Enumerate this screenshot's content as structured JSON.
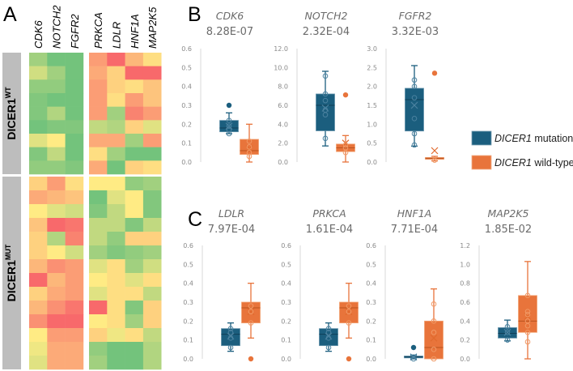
{
  "colors": {
    "mutation": "#1B5E7E",
    "wildtype": "#E8743B",
    "low": "#63BE7B",
    "mid": "#FFEB84",
    "high": "#F8696B",
    "group_bar": "#BDBDBD"
  },
  "panels": {
    "a": "A",
    "b": "B",
    "c": "C"
  },
  "legend": [
    {
      "italic": "DICER1",
      "text": " mutation",
      "series": "mutation"
    },
    {
      "italic": "DICER1",
      "text": " wild-type",
      "series": "wildtype"
    }
  ],
  "chart_data": [
    {
      "type": "heatmap",
      "panel": "A",
      "columns_left": [
        "CDK6",
        "NOTCH2",
        "FGFR2"
      ],
      "columns_right": [
        "PRKCA",
        "LDLR",
        "HNF1A",
        "MAP2K5"
      ],
      "scale": "green (-1) / yellow (0) / red (1)",
      "groups": [
        {
          "label": "DICER1",
          "sup": "WT",
          "rows": [
            [
              -0.6,
              -0.9,
              -0.9,
              0.6,
              1.0,
              0.4,
              0.1
            ],
            [
              -0.3,
              -0.6,
              -0.9,
              0.5,
              0.2,
              1.0,
              1.0
            ],
            [
              -0.7,
              -0.7,
              -0.9,
              0.6,
              0.2,
              0.1,
              0.3
            ],
            [
              -0.8,
              -0.9,
              -0.9,
              0.6,
              0.1,
              0.6,
              0.3
            ],
            [
              -0.8,
              -0.5,
              -0.9,
              0.6,
              -0.6,
              0.8,
              0.6
            ],
            [
              -0.9,
              -0.8,
              -0.8,
              -0.4,
              -0.5,
              0.2,
              -0.2
            ],
            [
              -0.2,
              0.0,
              -0.9,
              0.5,
              0.5,
              -0.6,
              0.6
            ],
            [
              -0.8,
              -0.4,
              -0.9,
              0.1,
              -0.6,
              -0.9,
              -0.9
            ],
            [
              -0.7,
              -0.7,
              -0.8,
              0.5,
              -0.9,
              0.2,
              0.1
            ]
          ]
        },
        {
          "label": "DICER1",
          "sup": "MUT",
          "rows": [
            [
              0.2,
              0.6,
              0.1,
              0.0,
              0.0,
              -0.7,
              -0.6
            ],
            [
              0.5,
              0.4,
              0.3,
              -0.9,
              -0.2,
              0.0,
              -0.8
            ],
            [
              0.0,
              -0.2,
              -0.3,
              -0.8,
              -0.4,
              0.0,
              -0.8
            ],
            [
              0.3,
              1.0,
              0.9,
              -0.4,
              -0.4,
              -0.8,
              -0.4
            ],
            [
              0.2,
              -0.5,
              0.8,
              -0.4,
              -0.7,
              0.2,
              0.2
            ],
            [
              0.2,
              0.0,
              -0.3,
              -0.6,
              -0.8,
              -0.7,
              -0.6
            ],
            [
              0.4,
              0.7,
              0.6,
              -0.2,
              0.1,
              -0.6,
              -0.3
            ],
            [
              1.0,
              0.4,
              0.6,
              0.0,
              0.1,
              -0.2,
              0.1
            ],
            [
              0.2,
              0.5,
              0.6,
              -0.2,
              0.1,
              0.1,
              -0.4
            ],
            [
              0.4,
              0.7,
              0.9,
              1.0,
              0.1,
              -0.8,
              0.2
            ],
            [
              0.7,
              1.0,
              1.0,
              0.0,
              0.1,
              -0.6,
              0.2
            ],
            [
              0.0,
              0.6,
              0.6,
              0.2,
              -0.1,
              0.1,
              -0.4
            ],
            [
              -0.1,
              0.5,
              0.5,
              -0.7,
              -0.9,
              -0.9,
              -0.5
            ],
            [
              -0.2,
              0.5,
              0.5,
              -0.6,
              -0.9,
              -0.9,
              -0.5
            ]
          ]
        }
      ]
    },
    {
      "type": "box",
      "panel": "B",
      "plots": [
        {
          "gene": "CDK6",
          "pvalue": "8.28E-07",
          "ylim": [
            0,
            0.6
          ],
          "ticks": [
            "0.0",
            "0.1",
            "0.2",
            "0.3",
            "0.4",
            "0.5",
            "0.6"
          ],
          "mutation": {
            "min": 0.15,
            "q1": 0.16,
            "median": 0.18,
            "q3": 0.22,
            "max": 0.26,
            "mean": 0.19,
            "points": [
              0.15,
              0.17,
              0.19,
              0.22
            ],
            "outliers": [
              0.3
            ]
          },
          "wildtype": {
            "min": 0.0,
            "q1": 0.04,
            "median": 0.06,
            "q3": 0.12,
            "max": 0.2,
            "mean": 0.07,
            "points": [
              0.03,
              0.05,
              0.08,
              0.11
            ],
            "outliers": []
          }
        },
        {
          "gene": "NOTCH2",
          "pvalue": "2.32E-04",
          "ylim": [
            0,
            12
          ],
          "ticks": [
            "0.0",
            "2.0",
            "4.0",
            "6.0",
            "8.0",
            "10.0",
            "12.0"
          ],
          "mutation": {
            "min": 1.7,
            "q1": 3.3,
            "median": 6.0,
            "q3": 7.2,
            "max": 9.6,
            "mean": 5.7,
            "points": [
              2.5,
              5.0,
              5.5,
              6.5,
              7.2,
              9.1
            ],
            "outliers": []
          },
          "wildtype": {
            "min": 0.0,
            "q1": 1.1,
            "median": 1.5,
            "q3": 1.9,
            "max": 2.8,
            "mean": 2.0,
            "points": [
              1.0,
              1.5,
              1.8
            ],
            "outliers": [
              7.1
            ]
          }
        },
        {
          "gene": "FGFR2",
          "pvalue": "3.32E-03",
          "ylim": [
            0,
            3
          ],
          "ticks": [
            "0.0",
            "0.5",
            "1.0",
            "1.5",
            "2.0",
            "2.5",
            "3.0"
          ],
          "mutation": {
            "min": 0.42,
            "q1": 0.82,
            "median": 1.65,
            "q3": 1.95,
            "max": 2.55,
            "mean": 1.5,
            "points": [
              0.45,
              0.75,
              1.15,
              1.7,
              2.0,
              2.17
            ],
            "outliers": []
          },
          "wildtype": {
            "min": 0.03,
            "q1": 0.07,
            "median": 0.1,
            "q3": 0.12,
            "max": 0.15,
            "mean": 0.3,
            "points": [
              0.05
            ],
            "outliers": [
              2.35
            ]
          }
        }
      ]
    },
    {
      "type": "box",
      "panel": "C",
      "plots": [
        {
          "gene": "LDLR",
          "pvalue": "7.97E-04",
          "ylim": [
            0,
            0.6
          ],
          "ticks": [
            "0.0",
            "0.1",
            "0.2",
            "0.3",
            "0.4",
            "0.5",
            "0.6"
          ],
          "mutation": {
            "min": 0.04,
            "q1": 0.07,
            "median": 0.13,
            "q3": 0.16,
            "max": 0.19,
            "mean": 0.12,
            "points": [
              0.06,
              0.11,
              0.14,
              0.16
            ],
            "outliers": []
          },
          "wildtype": {
            "min": 0.11,
            "q1": 0.19,
            "median": 0.27,
            "q3": 0.3,
            "max": 0.4,
            "mean": 0.25,
            "points": [
              0.19,
              0.25,
              0.28
            ],
            "outliers": [
              0.0
            ]
          }
        },
        {
          "gene": "PRKCA",
          "pvalue": "1.61E-04",
          "ylim": [
            0,
            0.6
          ],
          "ticks": [
            "0.0",
            "0.1",
            "0.2",
            "0.3",
            "0.4",
            "0.5",
            "0.6"
          ],
          "mutation": {
            "min": 0.04,
            "q1": 0.07,
            "median": 0.13,
            "q3": 0.16,
            "max": 0.19,
            "mean": 0.12,
            "points": [
              0.06,
              0.11,
              0.14,
              0.16
            ],
            "outliers": []
          },
          "wildtype": {
            "min": 0.11,
            "q1": 0.19,
            "median": 0.27,
            "q3": 0.3,
            "max": 0.4,
            "mean": 0.25,
            "points": [
              0.19,
              0.25,
              0.28
            ],
            "outliers": [
              0.0
            ]
          }
        },
        {
          "gene": "HNF1A",
          "pvalue": "7.71E-04",
          "ylim": [
            0,
            0.6
          ],
          "ticks": [
            "0.0",
            "0.1",
            "0.2",
            "0.3",
            "0.4",
            "0.5",
            "0.6"
          ],
          "mutation": {
            "min": 0.0,
            "q1": 0.005,
            "median": 0.01,
            "q3": 0.015,
            "max": 0.02,
            "mean": 0.01,
            "points": [
              0.0
            ],
            "outliers": [
              0.06
            ]
          },
          "wildtype": {
            "min": 0.0,
            "q1": 0.0,
            "median": 0.06,
            "q3": 0.2,
            "max": 0.37,
            "mean": 0.11,
            "points": [
              0.0,
              0.05,
              0.14,
              0.2,
              0.29
            ],
            "outliers": []
          }
        },
        {
          "gene": "MAP2K5",
          "pvalue": "1.85E-02",
          "ylim": [
            0,
            1.2
          ],
          "ticks": [
            "0.0",
            "0.2",
            "0.4",
            "0.6",
            "0.8",
            "1.0",
            "1.2"
          ],
          "mutation": {
            "min": 0.19,
            "q1": 0.22,
            "median": 0.27,
            "q3": 0.33,
            "max": 0.41,
            "mean": 0.28,
            "points": [
              0.2,
              0.28,
              0.34
            ],
            "outliers": []
          },
          "wildtype": {
            "min": 0.0,
            "q1": 0.28,
            "median": 0.4,
            "q3": 0.67,
            "max": 1.03,
            "mean": 0.45,
            "points": [
              0.18,
              0.28,
              0.35,
              0.4,
              0.47,
              0.5,
              0.67
            ],
            "outliers": []
          }
        }
      ]
    }
  ]
}
